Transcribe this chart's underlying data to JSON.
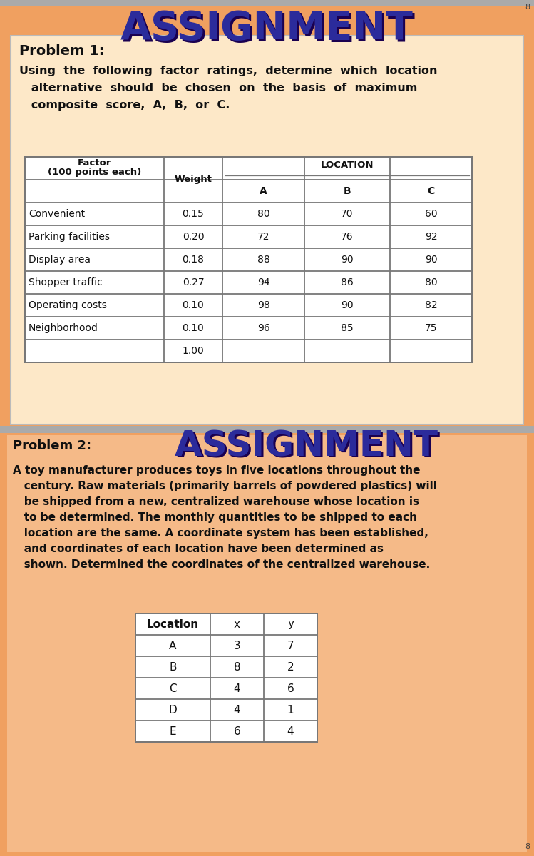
{
  "orange_bg": "#F0A060",
  "panel1_bg": "#FDEBD0",
  "panel2_bg": "#F5C9A0",
  "title1": "ASSIGNMENT",
  "title2": "ASSIGNMENT",
  "title_color": "#2B2B9B",
  "title_shadow": "#1A0050",
  "problem1_label": "Problem 1:",
  "problem1_lines": [
    "Using  the  following  factor  ratings,  determine  which  location",
    "   alternative  should  be  chosen  on  the  basis  of  maximum",
    "   composite  score,  A,  B,  or  C."
  ],
  "problem2_label": "Problem 2:",
  "problem2_lines": [
    "A toy manufacturer produces toys in five locations throughout the",
    "   century. Raw materials (primarily barrels of powdered plastics) will",
    "   be shipped from a new, centralized warehouse whose location is",
    "   to be determined. The monthly quantities to be shipped to each",
    "   location are the same. A coordinate system has been established,",
    "   and coordinates of each location have been determined as",
    "   shown. Determined the coordinates of the centralized warehouse."
  ],
  "table1_factors": [
    "Convenient",
    "Parking facilities",
    "Display area",
    "Shopper traffic",
    "Operating costs",
    "Neighborhood",
    ""
  ],
  "table1_weights": [
    "0.15",
    "0.20",
    "0.18",
    "0.27",
    "0.10",
    "0.10",
    "1.00"
  ],
  "table1_A": [
    "80",
    "72",
    "88",
    "94",
    "98",
    "96",
    ""
  ],
  "table1_B": [
    "70",
    "76",
    "90",
    "86",
    "90",
    "85",
    ""
  ],
  "table1_C": [
    "60",
    "92",
    "90",
    "80",
    "82",
    "75",
    ""
  ],
  "table2_header": [
    "Location",
    "x",
    "y"
  ],
  "table2_rows": [
    [
      "A",
      "3",
      "7"
    ],
    [
      "B",
      "8",
      "2"
    ],
    [
      "C",
      "4",
      "6"
    ],
    [
      "D",
      "4",
      "1"
    ],
    [
      "E",
      "6",
      "4"
    ]
  ],
  "text_color": "#111111",
  "table_line_color": "#777777",
  "gray_strip": "#AAAAAA",
  "corner8_color": "#444444"
}
